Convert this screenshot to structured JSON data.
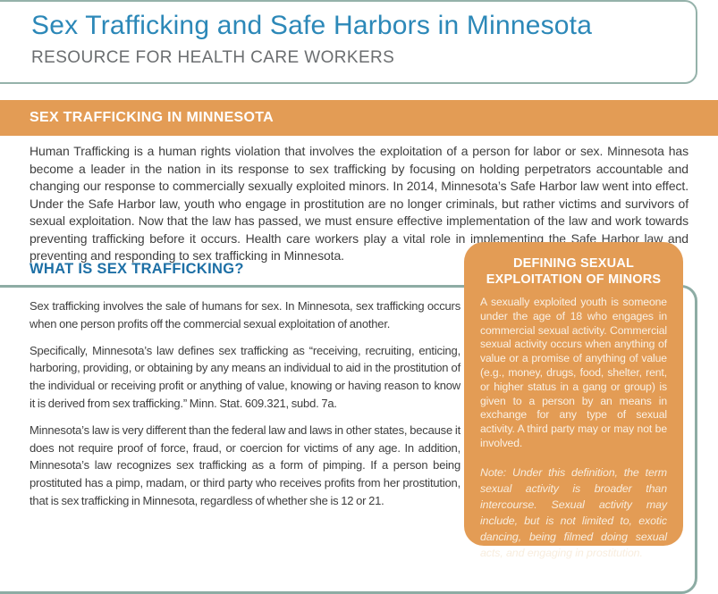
{
  "header": {
    "title": "Sex Trafficking and Safe Harbors in Minnesota",
    "subtitle": "RESOURCE FOR HEALTH CARE WORKERS"
  },
  "section": {
    "band_label": "SEX TRAFFICKING IN MINNESOTA",
    "intro": "Human Trafficking is a human rights violation that involves the exploitation of a person for labor or sex. Minnesota has become a leader in the nation in its response to sex trafficking by focusing on holding perpetrators accountable and changing our response to commercially sexually exploited minors. In 2014, Minnesota’s Safe Harbor law went into effect. Under the Safe Harbor law, youth who engage in prostitution are no longer criminals, but rather victims and survivors of sexual exploitation. Now that the law has passed, we must ensure effective implementation of the law and work towards preventing trafficking before it occurs. Health care workers play a vital role in implementing the Safe Harbor law and preventing and responding to sex trafficking in Minnesota."
  },
  "what_is": {
    "heading": "WHAT IS SEX TRAFFICKING?",
    "paragraphs": [
      "Sex trafficking involves the sale of humans for sex. In Minnesota, sex trafficking occurs when one person profits off the commercial sexual exploitation of another.",
      "Specifically, Minnesota’s law defines sex trafficking as “receiving, recruiting, enticing, harboring, providing, or obtaining by any means an individual to aid in the prostitution of the individual or receiving profit or anything of value, knowing or having reason to know it is derived from sex trafficking.” Minn. Stat. 609.321, subd. 7a.",
      "Minnesota’s law is very different than the federal law and laws in other states, because it does not require proof of force, fraud, or coercion for victims of any age. In addition, Minnesota’s law recognizes sex trafficking as a form of pimping. If a person being prostituted has a pimp, madam, or third party who receives profits from her prostitution, that is sex trafficking in Minnesota, regardless of whether she is 12 or 21."
    ]
  },
  "sidebar": {
    "heading": "DEFINING SEXUAL EXPLOITATION OF MINORS",
    "body": "A sexually exploited youth is someone under the age of 18 who engages in commercial sexual activity. Commercial sexual activity occurs when anything of value or a promise of anything of value (e.g., money, drugs, food, shelter, rent, or higher status in a gang or group) is given to a person by an means in exchange for any type of sexual activity. A third party may or may not be involved.",
    "note": "Note: Under this definition, the term sexual activity is broader than intercourse. Sexual activity may include, but is not limited to, exotic dancing, being filmed doing sexual acts, and engaging in prostitution."
  },
  "colors": {
    "accent_orange": "#E39C55",
    "title_blue": "#2C88B8",
    "heading_blue": "#1D6FA5",
    "border_sage": "#8DACA4",
    "body_text": "#3E3E3E"
  }
}
